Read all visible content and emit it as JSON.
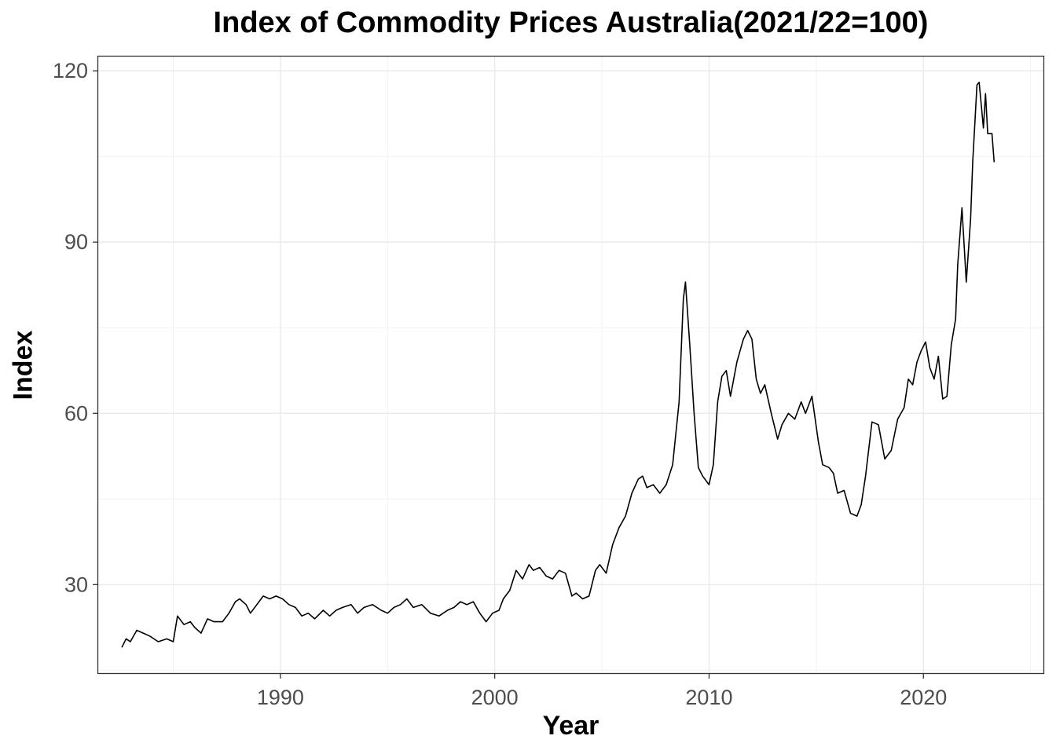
{
  "chart_data": {
    "type": "line",
    "title": "Index of Commodity Prices Australia(2021/22=100)",
    "xlabel": "Year",
    "ylabel": "Index",
    "xlim": [
      1981.5,
      2025.6
    ],
    "ylim": [
      14.5,
      122.5
    ],
    "x_ticks": [
      1990,
      2000,
      2010,
      2020
    ],
    "y_ticks": [
      30,
      60,
      90,
      120
    ],
    "grid": true,
    "legend": "none",
    "line_color": "#000000",
    "series": [
      {
        "x": [
          1982.6,
          1982.8,
          1983.0,
          1983.3,
          1983.6,
          1983.9,
          1984.3,
          1984.7,
          1985.0,
          1985.2,
          1985.5,
          1985.8,
          1986.0,
          1986.3,
          1986.6,
          1986.9,
          1987.3,
          1987.6,
          1987.9,
          1988.1,
          1988.4,
          1988.6,
          1988.9,
          1989.2,
          1989.5,
          1989.8,
          1990.1,
          1990.4,
          1990.7,
          1991.0,
          1991.3,
          1991.6,
          1992.0,
          1992.3,
          1992.6,
          1992.9,
          1993.3,
          1993.6,
          1993.9,
          1994.3,
          1994.7,
          1995.0,
          1995.3,
          1995.6,
          1995.9,
          1996.2,
          1996.6,
          1997.0,
          1997.4,
          1997.8,
          1998.1,
          1998.4,
          1998.7,
          1999.0,
          1999.3,
          1999.6,
          1999.9,
          2000.2,
          2000.4,
          2000.7,
          2001.0,
          2001.3,
          2001.6,
          2001.8,
          2002.1,
          2002.4,
          2002.7,
          2003.0,
          2003.3,
          2003.6,
          2003.8,
          2004.1,
          2004.4,
          2004.7,
          2004.9,
          2005.2,
          2005.5,
          2005.8,
          2006.1,
          2006.4,
          2006.7,
          2006.9,
          2007.1,
          2007.4,
          2007.7,
          2008.0,
          2008.3,
          2008.6,
          2008.8,
          2008.9,
          2009.1,
          2009.3,
          2009.5,
          2009.7,
          2010.0,
          2010.2,
          2010.4,
          2010.6,
          2010.8,
          2011.0,
          2011.3,
          2011.6,
          2011.8,
          2012.0,
          2012.2,
          2012.4,
          2012.6,
          2012.9,
          2013.2,
          2013.4,
          2013.7,
          2014.0,
          2014.3,
          2014.5,
          2014.8,
          2015.1,
          2015.3,
          2015.6,
          2015.8,
          2016.0,
          2016.3,
          2016.6,
          2016.9,
          2017.1,
          2017.3,
          2017.6,
          2017.9,
          2018.2,
          2018.5,
          2018.8,
          2019.1,
          2019.3,
          2019.5,
          2019.7,
          2019.9,
          2020.1,
          2020.3,
          2020.5,
          2020.7,
          2020.9,
          2021.1,
          2021.3,
          2021.5,
          2021.6,
          2021.8,
          2022.0,
          2022.2,
          2022.3,
          2022.5,
          2022.6,
          2022.8,
          2022.9,
          2023.0,
          2023.2,
          2023.3
        ],
        "values": [
          19.0,
          20.5,
          20.0,
          22.0,
          21.5,
          21.0,
          20.0,
          20.5,
          20.0,
          24.5,
          23.0,
          23.5,
          22.5,
          21.5,
          24.0,
          23.5,
          23.5,
          25.0,
          27.0,
          27.5,
          26.5,
          25.0,
          26.5,
          28.0,
          27.5,
          28.0,
          27.5,
          26.5,
          26.0,
          24.5,
          25.0,
          24.0,
          25.5,
          24.5,
          25.5,
          26.0,
          26.5,
          25.0,
          26.0,
          26.5,
          25.5,
          25.0,
          26.0,
          26.5,
          27.5,
          26.0,
          26.5,
          25.0,
          24.5,
          25.5,
          26.0,
          27.0,
          26.5,
          27.0,
          25.0,
          23.5,
          25.0,
          25.5,
          27.5,
          29.0,
          32.5,
          31.0,
          33.5,
          32.5,
          33.0,
          31.5,
          31.0,
          32.5,
          32.0,
          28.0,
          28.5,
          27.5,
          28.0,
          32.5,
          33.5,
          32.0,
          37.0,
          40.0,
          42.0,
          46.0,
          48.5,
          49.0,
          47.0,
          47.5,
          46.0,
          47.5,
          51.0,
          62.0,
          80.0,
          83.0,
          72.0,
          60.0,
          50.5,
          49.0,
          47.5,
          51.0,
          62.0,
          66.5,
          67.5,
          63.0,
          69.0,
          73.0,
          74.5,
          73.0,
          66.0,
          63.5,
          65.0,
          60.0,
          55.5,
          58.0,
          60.0,
          59.0,
          62.0,
          60.0,
          63.0,
          55.0,
          51.0,
          50.5,
          49.5,
          46.0,
          46.5,
          42.5,
          42.0,
          44.0,
          49.0,
          58.5,
          58.0,
          52.0,
          53.5,
          59.0,
          61.0,
          66.0,
          65.0,
          69.0,
          71.0,
          72.5,
          68.0,
          66.0,
          70.0,
          62.5,
          63.0,
          72.0,
          76.5,
          86.0,
          96.0,
          83.0,
          94.0,
          104.0,
          117.5,
          118.0,
          110.0,
          116.0,
          109.0,
          109.0,
          104.0
        ]
      }
    ]
  }
}
